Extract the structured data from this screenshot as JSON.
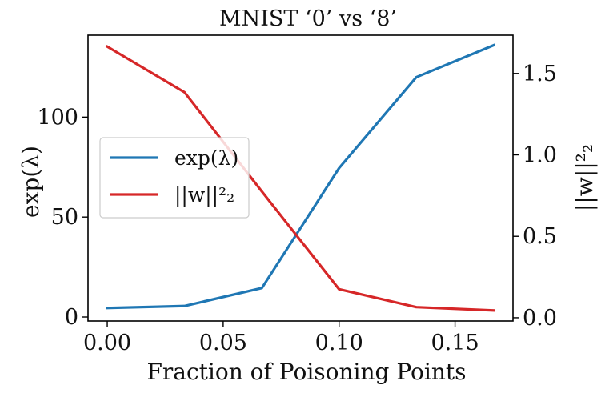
{
  "chart_data": {
    "type": "line",
    "title": "MNIST ‘0’ vs ‘8’",
    "xlabel": "Fraction of Poisoning Points",
    "ylabel_left": "exp(λ)",
    "ylabel_right": "||w||²₂",
    "x": [
      0.0,
      0.0333,
      0.0667,
      0.1,
      0.1333,
      0.1667
    ],
    "xlim": [
      -0.0083,
      0.175
    ],
    "ylim_left": [
      -2,
      141
    ],
    "ylim_right": [
      -0.02,
      1.735
    ],
    "xticks": [
      0.0,
      0.05,
      0.1,
      0.15
    ],
    "xtick_labels": [
      "0.00",
      "0.05",
      "0.10",
      "0.15"
    ],
    "yticks_left": [
      0,
      50,
      100
    ],
    "ytick_labels_left": [
      "0",
      "50",
      "100"
    ],
    "yticks_right": [
      0.0,
      0.5,
      1.0,
      1.5
    ],
    "ytick_labels_right": [
      "0.0",
      "0.5",
      "1.0",
      "1.5"
    ],
    "grid": false,
    "legend_position": "center-left",
    "series": [
      {
        "name": "exp(λ)",
        "axis": "left",
        "color": "#1f77b4",
        "values": [
          4.5,
          5.5,
          14.5,
          74.5,
          120,
          136
        ]
      },
      {
        "name": "||w||²₂",
        "axis": "right",
        "color": "#d62728",
        "values": [
          1.665,
          1.385,
          0.775,
          0.175,
          0.065,
          0.045
        ]
      }
    ]
  }
}
